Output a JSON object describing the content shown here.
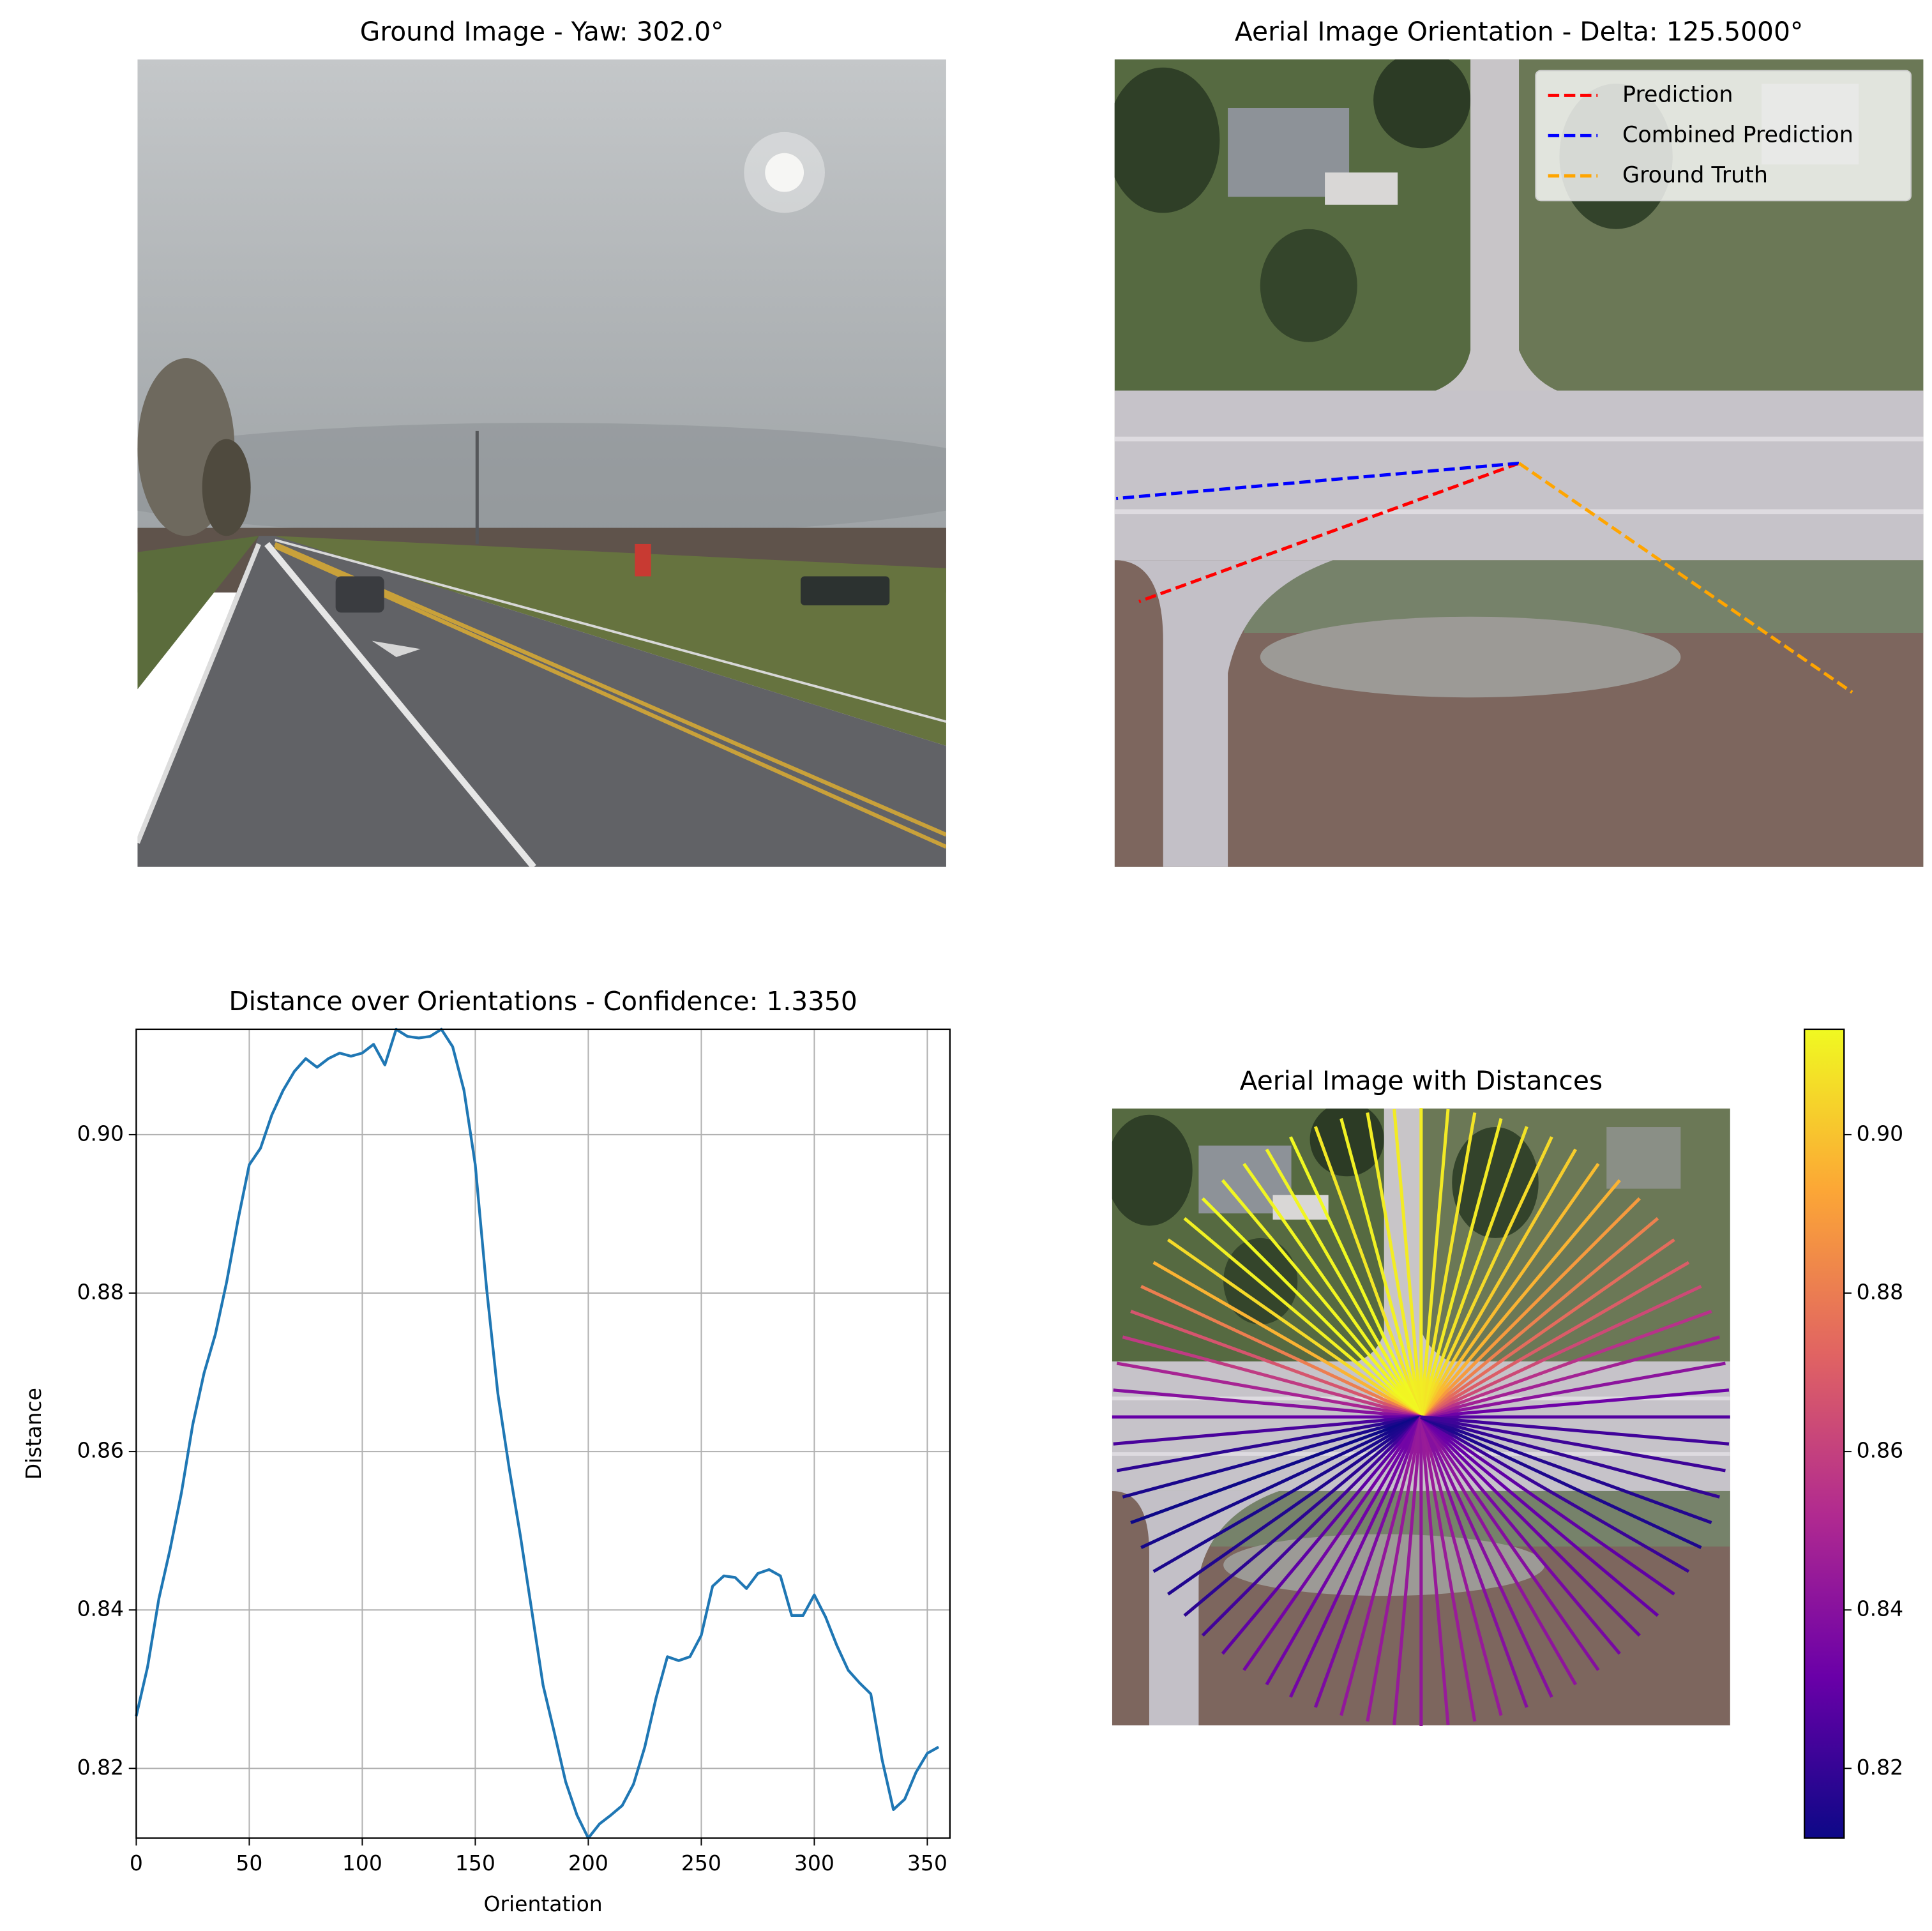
{
  "chart_data": [
    {
      "type": "image",
      "title": "Ground Image - Yaw: 302.0°"
    },
    {
      "type": "orientation",
      "title": "Aerial Image Orientation - Delta: 125.5000°",
      "legend": "upper right",
      "series": [
        {
          "name": "Prediction",
          "color": "#ff0000",
          "values": [
            200
          ]
        },
        {
          "name": "Combined Prediction",
          "color": "#0000ff",
          "values": [
            185
          ]
        },
        {
          "name": "Ground Truth",
          "color": "#ffa500",
          "values": [
            325.5
          ]
        }
      ]
    },
    {
      "type": "line",
      "title": "Distance over Orientations - Confidence: 1.3350",
      "xlabel": "Orientation",
      "ylabel": "Distance",
      "color": "#1f77b4",
      "grid": true,
      "x": [
        0,
        5,
        10,
        15,
        20,
        25,
        30,
        35,
        40,
        45,
        50,
        55,
        60,
        65,
        70,
        75,
        80,
        85,
        90,
        95,
        100,
        105,
        110,
        115,
        120,
        125,
        130,
        135,
        140,
        145,
        150,
        155,
        160,
        165,
        170,
        175,
        180,
        185,
        190,
        195,
        200,
        205,
        210,
        215,
        220,
        225,
        230,
        235,
        240,
        245,
        250,
        255,
        260,
        265,
        270,
        275,
        280,
        285,
        290,
        295,
        300,
        305,
        310,
        315,
        320,
        325,
        330,
        335,
        340,
        345,
        350,
        355
      ],
      "values": [
        0.8266,
        0.8328,
        0.8414,
        0.8477,
        0.8548,
        0.8634,
        0.8699,
        0.8748,
        0.8814,
        0.8892,
        0.8962,
        0.8983,
        0.9025,
        0.9056,
        0.908,
        0.9096,
        0.9085,
        0.9096,
        0.9103,
        0.9099,
        0.9103,
        0.9114,
        0.9088,
        0.9133,
        0.9124,
        0.9122,
        0.9124,
        0.9133,
        0.9111,
        0.9056,
        0.8962,
        0.8806,
        0.8673,
        0.8579,
        0.8493,
        0.8399,
        0.8305,
        0.8245,
        0.8183,
        0.8141,
        0.8112,
        0.813,
        0.8141,
        0.8153,
        0.818,
        0.8227,
        0.8289,
        0.8341,
        0.8336,
        0.8341,
        0.8368,
        0.843,
        0.8443,
        0.8441,
        0.8427,
        0.8446,
        0.8451,
        0.8443,
        0.8393,
        0.8393,
        0.8419,
        0.8391,
        0.8355,
        0.8324,
        0.8308,
        0.8294,
        0.8211,
        0.8148,
        0.8161,
        0.8195,
        0.8219,
        0.8227
      ],
      "xlim": [
        0,
        360
      ],
      "ylim": [
        0.8112,
        0.9133
      ],
      "xticks": [
        0,
        50,
        100,
        150,
        200,
        250,
        300,
        350
      ],
      "yticks": [
        0.82,
        0.84,
        0.86,
        0.88,
        {
          "value": 0.9,
          "label": "0.90"
        }
      ]
    },
    {
      "type": "radial",
      "title": "Aerial Image with Distances",
      "x": [
        0,
        5,
        10,
        15,
        20,
        25,
        30,
        35,
        40,
        45,
        50,
        55,
        60,
        65,
        70,
        75,
        80,
        85,
        90,
        95,
        100,
        105,
        110,
        115,
        120,
        125,
        130,
        135,
        140,
        145,
        150,
        155,
        160,
        165,
        170,
        175,
        180,
        185,
        190,
        195,
        200,
        205,
        210,
        215,
        220,
        225,
        230,
        235,
        240,
        245,
        250,
        255,
        260,
        265,
        270,
        275,
        280,
        285,
        290,
        295,
        300,
        305,
        310,
        315,
        320,
        325,
        330,
        335,
        340,
        345,
        350,
        355
      ],
      "values": [
        0.8266,
        0.8328,
        0.8414,
        0.8477,
        0.8548,
        0.8634,
        0.8699,
        0.8748,
        0.8814,
        0.8892,
        0.8962,
        0.8983,
        0.9025,
        0.9056,
        0.908,
        0.9096,
        0.9085,
        0.9096,
        0.9103,
        0.9099,
        0.9103,
        0.9114,
        0.9088,
        0.9133,
        0.9124,
        0.9122,
        0.9124,
        0.9133,
        0.9111,
        0.9056,
        0.8962,
        0.8806,
        0.8673,
        0.8579,
        0.8493,
        0.8399,
        0.8305,
        0.8245,
        0.8183,
        0.8141,
        0.8112,
        0.813,
        0.8141,
        0.8153,
        0.818,
        0.8227,
        0.8289,
        0.8341,
        0.8336,
        0.8341,
        0.8368,
        0.843,
        0.8443,
        0.8441,
        0.8427,
        0.8446,
        0.8451,
        0.8443,
        0.8393,
        0.8393,
        0.8419,
        0.8391,
        0.8355,
        0.8324,
        0.8308,
        0.8294,
        0.8211,
        0.8148,
        0.8161,
        0.8195,
        0.8219,
        0.8227
      ],
      "colormap": [
        "#0d0887",
        "#6a00a8",
        "#b12a90",
        "#e16462",
        "#fca636",
        "#f0f921"
      ],
      "clim": [
        0.8112,
        0.9133
      ],
      "cticks": [
        0.82,
        0.84,
        0.86,
        0.88,
        {
          "value": 0.9,
          "label": "0.90"
        }
      ]
    }
  ]
}
